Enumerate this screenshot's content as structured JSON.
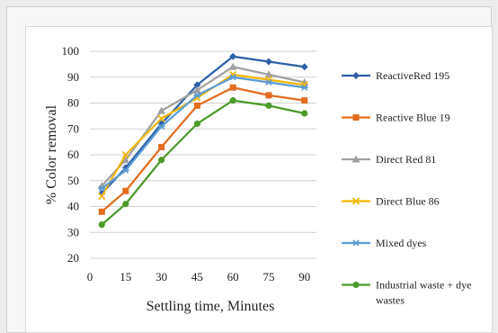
{
  "chart_data": {
    "type": "line",
    "xlabel": "Settling time, Minutes",
    "ylabel": "% Color removal",
    "x": [
      5,
      15,
      30,
      45,
      60,
      75,
      90
    ],
    "x_ticks": [
      0,
      15,
      30,
      45,
      60,
      75,
      90
    ],
    "xlim": [
      0,
      95
    ],
    "ylim": [
      20,
      100
    ],
    "y_ticks": [
      20,
      30,
      40,
      50,
      60,
      70,
      80,
      90,
      100
    ],
    "grid": "horizontal",
    "legend_position": "right",
    "series": [
      {
        "name": "ReactiveRed 195",
        "color": "#2e5fa8",
        "marker": "diamond",
        "values": [
          45,
          55,
          72,
          87,
          98,
          96,
          94
        ]
      },
      {
        "name": "Reactive Blue 19",
        "color": "#e36c1f",
        "marker": "square",
        "values": [
          38,
          46,
          63,
          79,
          86,
          83,
          81
        ]
      },
      {
        "name": "Direct Red 81",
        "color": "#a0a0a0",
        "marker": "triangle",
        "values": [
          48,
          58,
          77,
          85,
          94,
          91,
          88
        ]
      },
      {
        "name": "Direct Blue 86",
        "color": "#f2b705",
        "marker": "x",
        "values": [
          44,
          60,
          74,
          82,
          91,
          89,
          87
        ]
      },
      {
        "name": "Mixed dyes",
        "color": "#5b9bd5",
        "marker": "asterisk",
        "values": [
          47,
          54,
          71,
          83,
          90,
          88,
          86
        ]
      },
      {
        "name": "Industrial waste + dye\nwastes",
        "color": "#4c9a2a",
        "marker": "circle",
        "values": [
          33,
          41,
          58,
          72,
          81,
          79,
          76
        ]
      }
    ]
  }
}
